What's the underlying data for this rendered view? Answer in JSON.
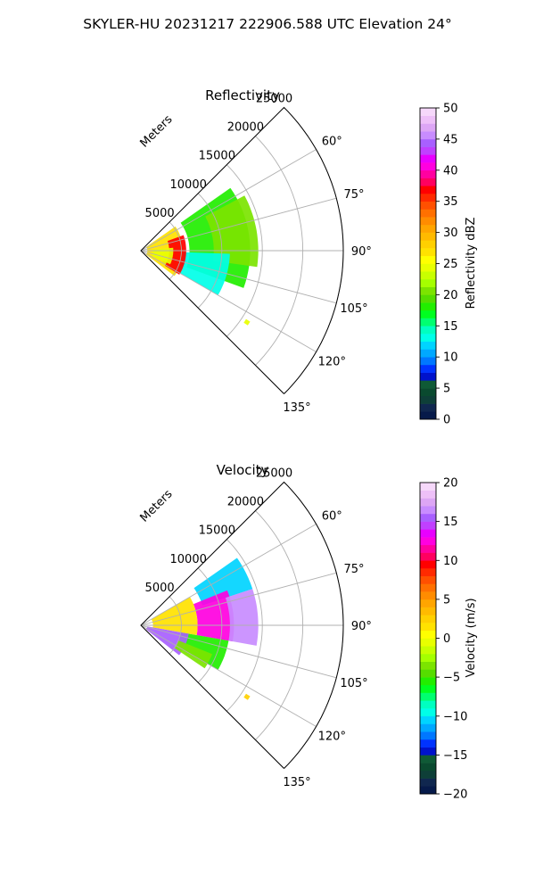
{
  "figure": {
    "suptitle": "SKYLER-HU  20231217  222906.588 UTC Elevation 24°"
  },
  "chart_data": [
    {
      "type": "heatmap",
      "projection": "polar-sector",
      "title": "Reflectivity",
      "radial_label": "Meters",
      "radial_ticks": [
        5000,
        10000,
        15000,
        20000,
        25000
      ],
      "radial_tick_labels": [
        "5000",
        "10000",
        "15000",
        "20000",
        "25000"
      ],
      "radial_range": [
        0,
        25000
      ],
      "azimuth_range_deg": [
        45,
        135
      ],
      "azimuth_ticks": [
        60,
        75,
        90,
        105,
        120,
        135
      ],
      "azimuth_tick_labels": [
        "60°",
        "75°",
        "90°",
        "105°",
        "120°",
        "135°"
      ],
      "grid": true,
      "colorbar": {
        "label": "Reflectivity dBZ",
        "range": [
          0,
          50
        ],
        "ticks": [
          0,
          5,
          10,
          15,
          20,
          25,
          30,
          35,
          40,
          45,
          50
        ],
        "tick_labels": [
          "0",
          "5",
          "10",
          "15",
          "20",
          "25",
          "30",
          "35",
          "40",
          "45",
          "50"
        ],
        "colors": [
          "#061a4a",
          "#10274f",
          "#0e3f38",
          "#0a4a2f",
          "#0f5a36",
          "#0012cc",
          "#0033ff",
          "#0077ff",
          "#00a8ff",
          "#00d4ff",
          "#00ffe8",
          "#00ffc0",
          "#00ff70",
          "#00ff20",
          "#22ee00",
          "#55dd00",
          "#7ce400",
          "#a5ff00",
          "#c8ff00",
          "#e8ff00",
          "#ffff00",
          "#ffe200",
          "#ffd000",
          "#ffba00",
          "#ffa500",
          "#ff8c00",
          "#ff7000",
          "#ff5000",
          "#ff2a00",
          "#ff0000",
          "#ff0060",
          "#ff00a0",
          "#ff00e0",
          "#e800ff",
          "#c040ff",
          "#a860ff",
          "#c88cff",
          "#dda6f5",
          "#eec0f8",
          "#f6d8fa"
        ]
      },
      "echo_regions": [
        {
          "az": [
            55,
            110
          ],
          "r": [
            6000,
            13500
          ],
          "value": 18
        },
        {
          "az": [
            62,
            98
          ],
          "r": [
            9000,
            14500
          ],
          "value": 20
        },
        {
          "az": [
            92,
            120
          ],
          "r": [
            3000,
            11000
          ],
          "value": 13
        },
        {
          "az": [
            55,
            127
          ],
          "r": [
            800,
            5200
          ],
          "value": 27
        },
        {
          "az": [
            70,
            122
          ],
          "r": [
            3500,
            5600
          ],
          "value": 37
        },
        {
          "az": [
            85,
            115
          ],
          "r": [
            1500,
            4000
          ],
          "value": 24
        },
        {
          "az": [
            123,
            125
          ],
          "r": [
            15500,
            16100
          ],
          "value": 24
        }
      ]
    },
    {
      "type": "heatmap",
      "projection": "polar-sector",
      "title": "Velocity",
      "radial_label": "Meters",
      "radial_ticks": [
        5000,
        10000,
        15000,
        20000,
        25000
      ],
      "radial_tick_labels": [
        "5000",
        "10000",
        "15000",
        "20000",
        "25000"
      ],
      "radial_range": [
        0,
        25000
      ],
      "azimuth_range_deg": [
        45,
        135
      ],
      "azimuth_ticks": [
        60,
        75,
        90,
        105,
        120,
        135
      ],
      "azimuth_tick_labels": [
        "60°",
        "75°",
        "90°",
        "105°",
        "120°",
        "135°"
      ],
      "grid": true,
      "colorbar": {
        "label": "Velocity (m/s)",
        "range": [
          -20,
          20
        ],
        "ticks": [
          -20,
          -15,
          -10,
          -5,
          0,
          5,
          10,
          15,
          20
        ],
        "tick_labels": [
          "−20",
          "−15",
          "−10",
          "−5",
          "0",
          "5",
          "10",
          "15",
          "20"
        ],
        "colors": [
          "#061a4a",
          "#10274f",
          "#0e3f38",
          "#0a4a2f",
          "#0f5a36",
          "#0012cc",
          "#0033ff",
          "#0077ff",
          "#00a8ff",
          "#00d4ff",
          "#00ffe8",
          "#00ffc0",
          "#00ff70",
          "#00ff20",
          "#22ee00",
          "#55dd00",
          "#7ce400",
          "#a5ff00",
          "#c8ff00",
          "#e8ff00",
          "#ffff00",
          "#ffe200",
          "#ffd000",
          "#ffba00",
          "#ffa500",
          "#ff8c00",
          "#ff7000",
          "#ff5000",
          "#ff2a00",
          "#ff0000",
          "#ff0060",
          "#ff00a0",
          "#ff00e0",
          "#e800ff",
          "#c040ff",
          "#a860ff",
          "#c88cff",
          "#dda6f5",
          "#eec0f8",
          "#f6d8fa"
        ]
      },
      "echo_regions": [
        {
          "az": [
            55,
            72
          ],
          "r": [
            8000,
            14500
          ],
          "value": -11
        },
        {
          "az": [
            68,
            100
          ],
          "r": [
            7000,
            11500
          ],
          "value": 12
        },
        {
          "az": [
            72,
            100
          ],
          "r": [
            11000,
            14500
          ],
          "value": 16
        },
        {
          "az": [
            100,
            120
          ],
          "r": [
            5000,
            11000
          ],
          "value": -6
        },
        {
          "az": [
            60,
            100
          ],
          "r": [
            1500,
            7000
          ],
          "value": 1
        },
        {
          "az": [
            100,
            128
          ],
          "r": [
            800,
            6000
          ],
          "value": 15
        },
        {
          "az": [
            112,
            124
          ],
          "r": [
            5000,
            9500
          ],
          "value": -4
        },
        {
          "az": [
            123,
            125
          ],
          "r": [
            15500,
            16100
          ],
          "value": 2
        }
      ]
    }
  ]
}
